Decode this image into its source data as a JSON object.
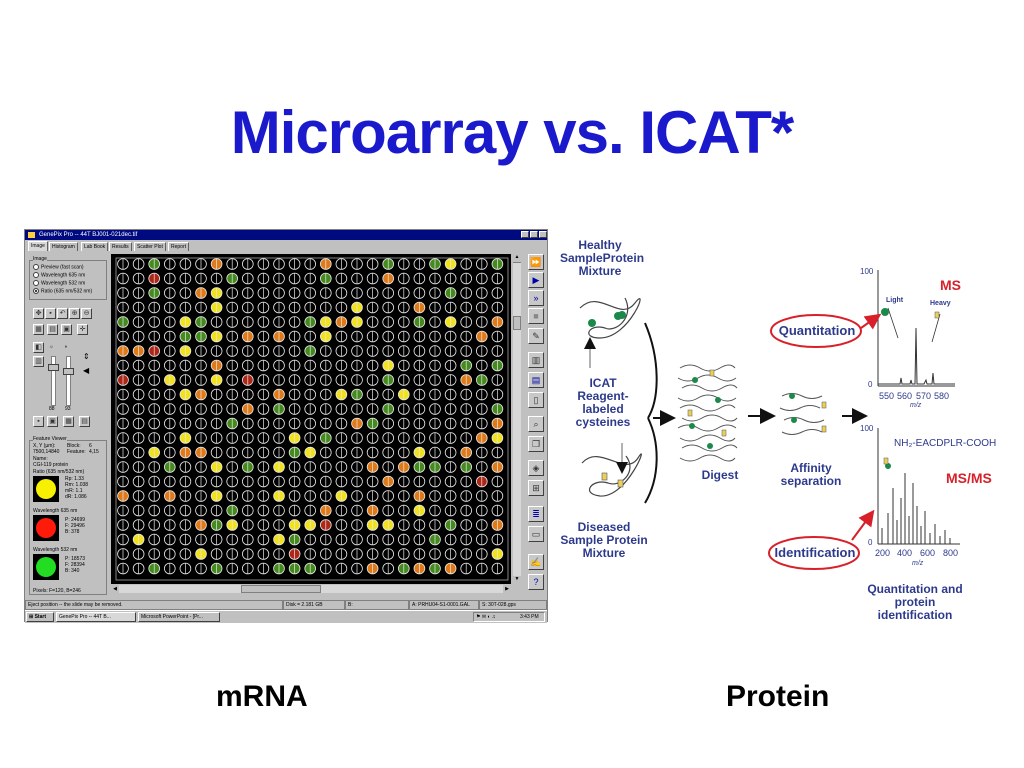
{
  "slide": {
    "title": "Microarray vs. ICAT*",
    "left_caption": "mRNA",
    "right_caption": "Protein"
  },
  "genepix": {
    "window_title": "GenePix Pro -- 44T BJ001-021dec.tif",
    "tabs": [
      "Image",
      "Histogram",
      "Lab Book",
      "Results",
      "Scatter Plot",
      "Report"
    ],
    "image_group": {
      "label": "Image",
      "options": [
        "Preview  (fast scan)",
        "Wavelength 635 nm",
        "Wavelength 532 nm",
        "Ratio (635 nm/532 nm)"
      ],
      "selected_index": 3
    },
    "slider_values": [
      "88",
      "93"
    ],
    "feature_viewer": {
      "label": "Feature Viewer",
      "xy_label": "X, Y (µm):",
      "xy_value": "7500,14840",
      "block_label": "Block:",
      "block_value": "6",
      "feature_label": "Feature:",
      "feature_value": "4,15",
      "name_label": "Name:",
      "name_value": "CGI-119 protein",
      "ratio_label": "Ratio (635 nm/532 nm)",
      "ratio_stats": [
        "Rp:  1.33",
        "Rm:  1.038",
        "mR:  1.1",
        "dR:  1.086"
      ],
      "w635_label": "Wavelength 635 nm",
      "w635_stats": [
        "P:    24699",
        "F:    29496",
        "B:    378"
      ],
      "w532_label": "Wavelength 532 nm",
      "w532_stats": [
        "P:    18573",
        "F:    28394",
        "B:    340"
      ],
      "pixels": "Pixels: F=120, B=246"
    },
    "status": {
      "message": "Eject position -- the slide may be removed.",
      "disk": "Disk = 2.181 GB",
      "b": "B:",
      "file": "A: PRHU04-S1-0001.GAL",
      "range": "S: 30T-028.gps"
    },
    "taskbar": {
      "start": "Start",
      "item1": "GenePix Pro -- 44T B...",
      "item2": "Microsoft PowerPoint - [Pr...",
      "clock": "3:43 PM"
    },
    "colors": {
      "spot_yellow": "#f2e21c",
      "spot_orange": "#e07a18",
      "spot_green": "#5cb82a",
      "spot_red": "#d8301c",
      "viewer_yellow": "#f7f000",
      "viewer_red": "#ff1a0a",
      "viewer_green": "#22dd22"
    }
  },
  "icat": {
    "healthy": [
      "Healthy",
      "SampleProtein",
      "Mixture"
    ],
    "reagent": [
      "ICAT",
      "Reagent-",
      "labeled",
      "cysteines"
    ],
    "diseased": [
      "Diseased",
      "Sample Protein",
      "Mixture"
    ],
    "digest": "Digest",
    "affinity": [
      "Affinity",
      "separation"
    ],
    "quantitation": "Quantitation",
    "identification": "Identification",
    "ms_label": "MS",
    "msms_label": "MS/MS",
    "light": "Light",
    "heavy": "Heavy",
    "ms_axis": {
      "y_top": "100",
      "y_zero": "0",
      "ticks": [
        "550",
        "560",
        "570",
        "580"
      ],
      "xlabel": "m/z"
    },
    "msms_axis": {
      "y_top": "100",
      "y_zero": "0",
      "ticks": [
        "200",
        "400",
        "600",
        "800"
      ],
      "xlabel": "m/z"
    },
    "peptide": "NH₂-EACDPLR-COOH",
    "result": [
      "Quantitation and",
      "protein identification"
    ],
    "colors": {
      "label_blue": "#2d3a8c",
      "callout_red": "#d8202a",
      "bead_green": "#1a8a4a"
    }
  }
}
